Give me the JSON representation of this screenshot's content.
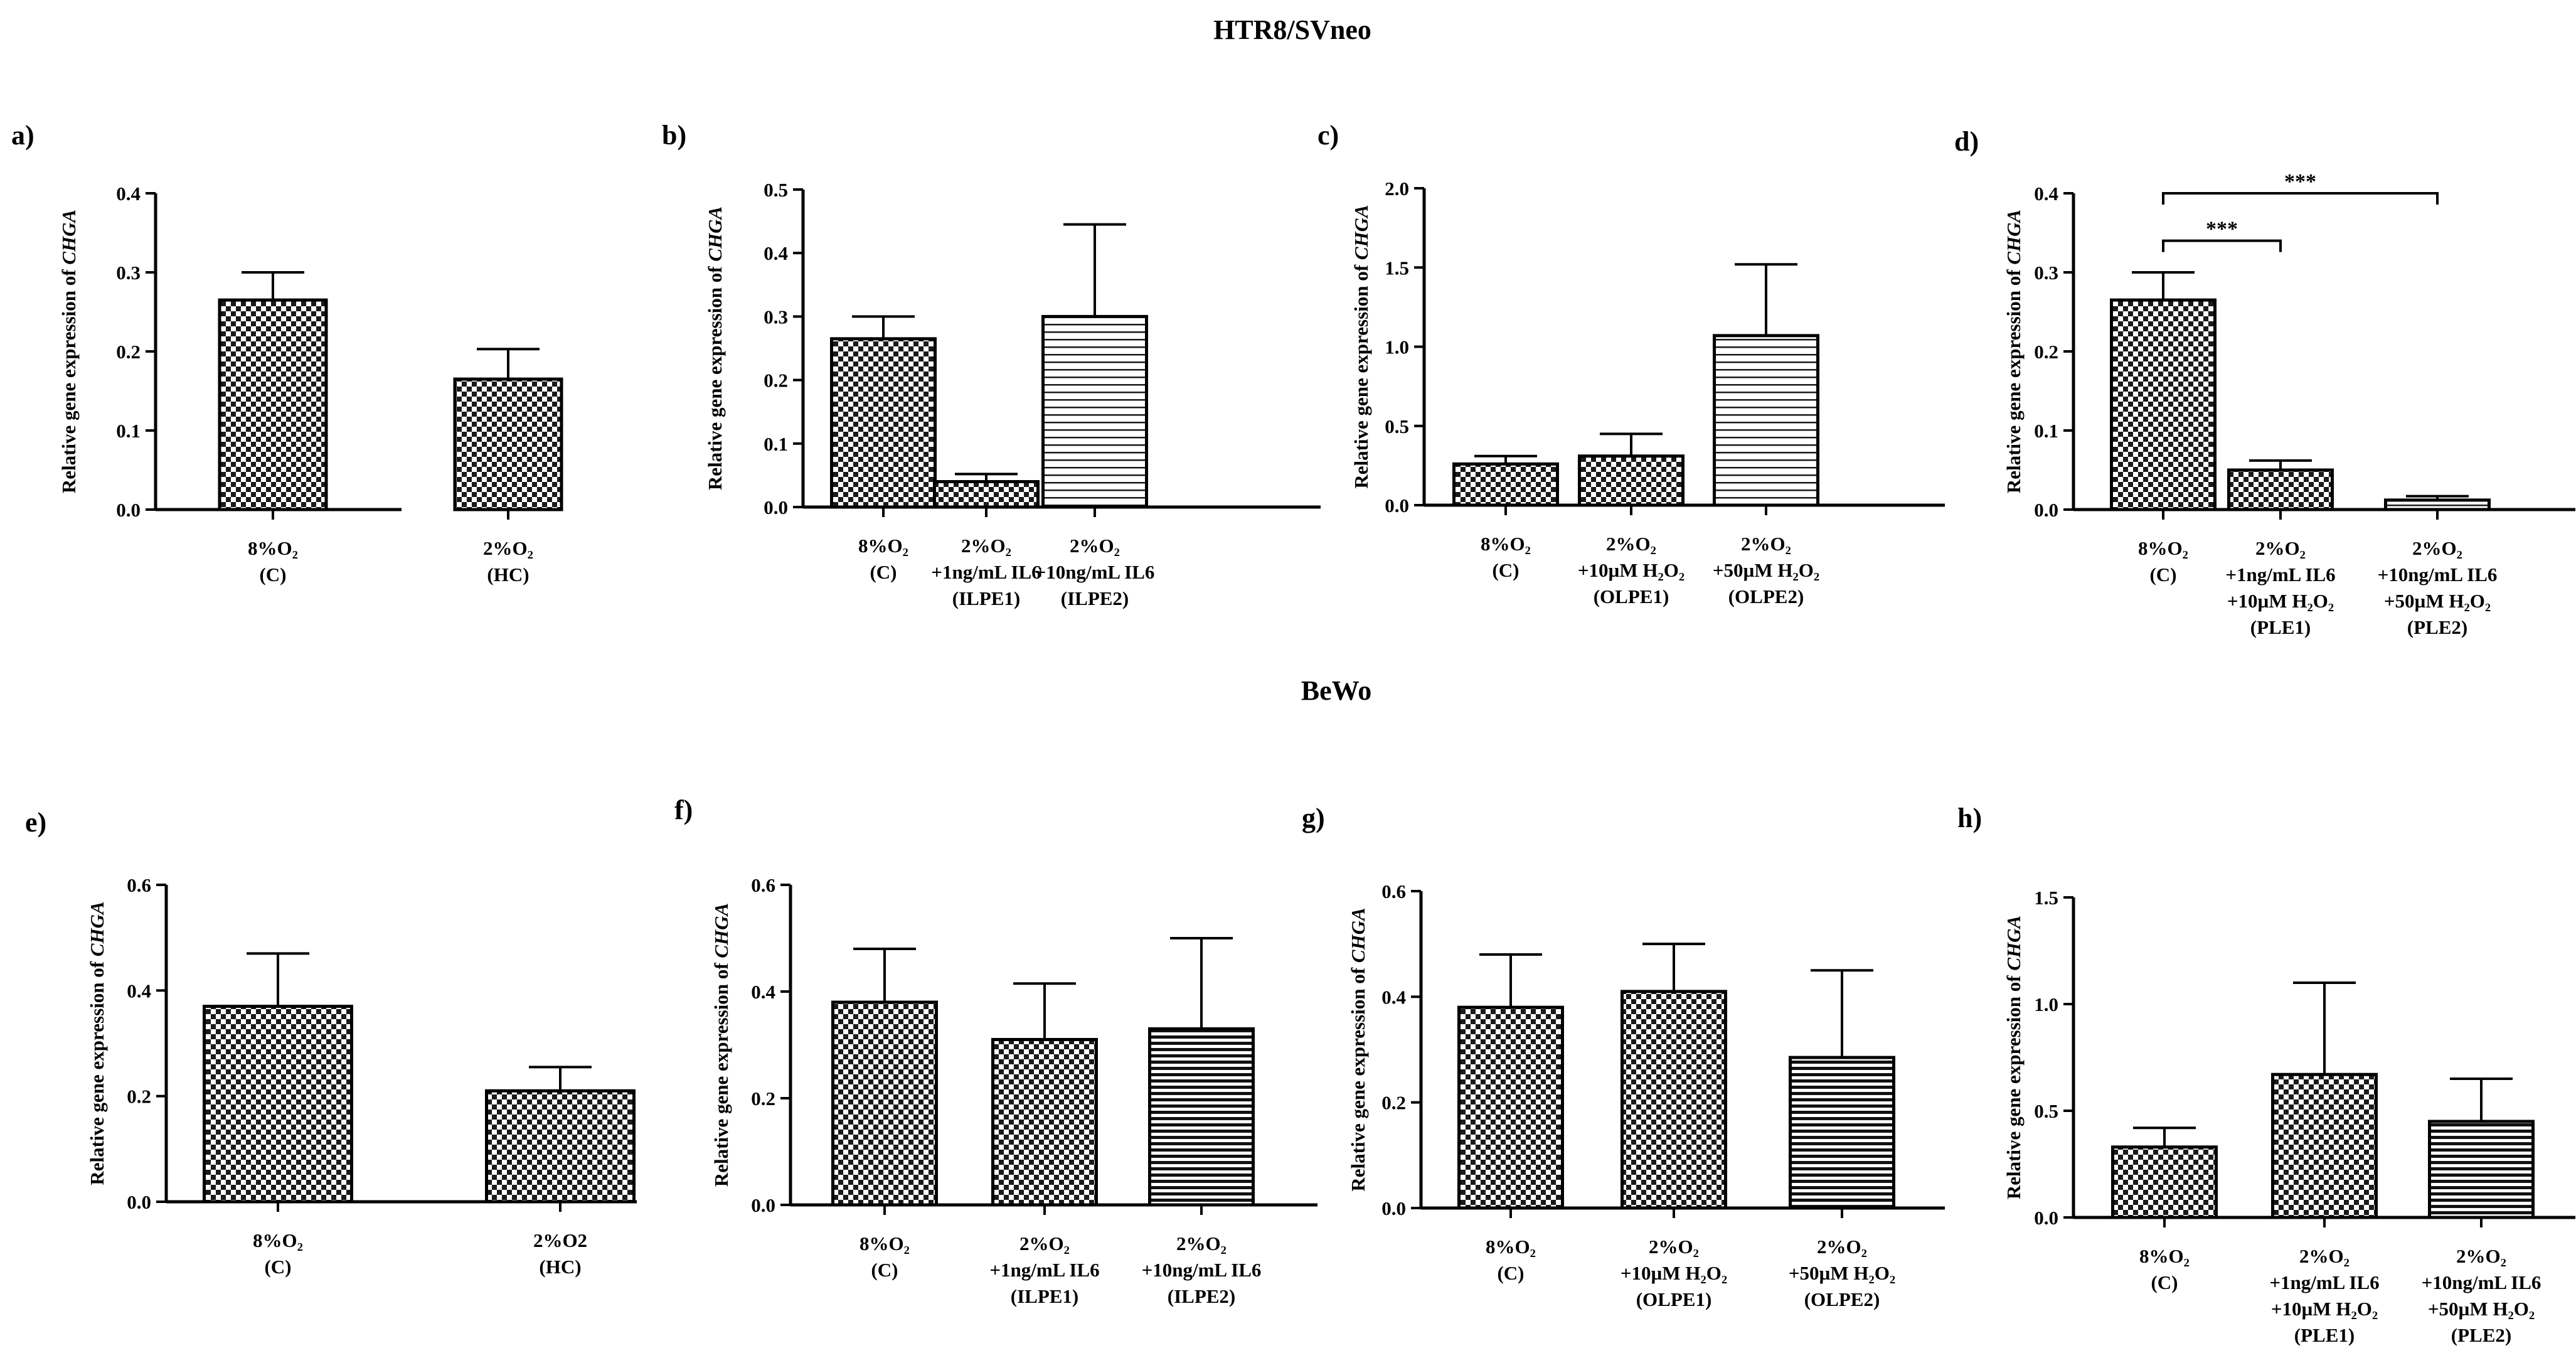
{
  "figure": {
    "section_titles": {
      "top": "HTR8/SVneo",
      "bottom": "BeWo"
    }
  },
  "chart_data": [
    {
      "type": "bar",
      "panel": "a)",
      "ylabel": "Relative gene expression of CHGA",
      "ylim": [
        0,
        0.4
      ],
      "yticks": [
        "0.0",
        "0.1",
        "0.2",
        "0.3",
        "0.4"
      ],
      "categories": [
        [
          "8%O₂",
          "(C)"
        ],
        [
          "2%O₂",
          "(HC)"
        ]
      ],
      "values": [
        0.265,
        0.165
      ],
      "errors": [
        0.035,
        0.038
      ],
      "patterns": [
        "checker",
        "checker"
      ]
    },
    {
      "type": "bar",
      "panel": "b)",
      "ylabel": "Relative gene expression of CHGA",
      "ylim": [
        0,
        0.5
      ],
      "yticks": [
        "0.0",
        "0.1",
        "0.2",
        "0.3",
        "0.4",
        "0.5"
      ],
      "categories": [
        [
          "8%O₂",
          "(C)"
        ],
        [
          "2%O₂",
          "+1ng/mL IL6",
          "(ILPE1)"
        ],
        [
          "2%O₂",
          "+10ng/mL IL6",
          "(ILPE2)"
        ]
      ],
      "values": [
        0.265,
        0.04,
        0.3
      ],
      "errors": [
        0.035,
        0.012,
        0.145
      ],
      "patterns": [
        "checker",
        "checker",
        "hlines"
      ]
    },
    {
      "type": "bar",
      "panel": "c)",
      "ylabel": "Relative gene expression of CHGA",
      "ylim": [
        0,
        2.0
      ],
      "yticks": [
        "0.0",
        "0.5",
        "1.0",
        "1.5",
        "2.0"
      ],
      "categories": [
        [
          "8%O₂",
          "(C)"
        ],
        [
          "2%O₂",
          "+10µM H₂O₂",
          "(OLPE1)"
        ],
        [
          "2%O₂",
          "+50µM H₂O₂",
          "(OLPE2)"
        ]
      ],
      "values": [
        0.26,
        0.31,
        1.07
      ],
      "errors": [
        0.05,
        0.14,
        0.45
      ],
      "patterns": [
        "checker",
        "checker",
        "hlines"
      ]
    },
    {
      "type": "bar",
      "panel": "d)",
      "ylabel": "Relative gene expression of CHGA",
      "ylim": [
        0,
        0.4
      ],
      "yticks": [
        "0.0",
        "0.1",
        "0.2",
        "0.3",
        "0.4"
      ],
      "categories": [
        [
          "8%O₂",
          "(C)"
        ],
        [
          "2%O₂",
          "+1ng/mL IL6",
          "+10µM H₂O₂",
          "(PLE1)"
        ],
        [
          "2%O₂",
          "+10ng/mL IL6",
          "+50µM H₂O₂",
          "(PLE2)"
        ]
      ],
      "values": [
        0.265,
        0.05,
        0.012
      ],
      "errors": [
        0.035,
        0.012,
        0.005
      ],
      "patterns": [
        "checker",
        "checker",
        "hlines"
      ],
      "annotations": [
        {
          "from": 0,
          "to": 1,
          "y": 0.34,
          "label": "***"
        },
        {
          "from": 0,
          "to": 2,
          "y": 0.4,
          "label": "***"
        }
      ]
    },
    {
      "type": "bar",
      "panel": "e)",
      "ylabel": "Relative gene expression of CHGA",
      "ylim": [
        0,
        0.6
      ],
      "yticks": [
        "0.0",
        "0.2",
        "0.4",
        "0.6"
      ],
      "categories": [
        [
          "8%O₂",
          "(C)"
        ],
        [
          "2%O2",
          "(HC)"
        ]
      ],
      "values": [
        0.37,
        0.21
      ],
      "errors": [
        0.1,
        0.045
      ],
      "patterns": [
        "checker",
        "checker"
      ]
    },
    {
      "type": "bar",
      "panel": "f)",
      "ylabel": "Relative gene expression of CHGA",
      "ylim": [
        0,
        0.6
      ],
      "yticks": [
        "0.0",
        "0.2",
        "0.4",
        "0.6"
      ],
      "categories": [
        [
          "8%O₂",
          "(C)"
        ],
        [
          "2%O₂",
          "+1ng/mL IL6",
          "(ILPE1)"
        ],
        [
          "2%O₂",
          "+10ng/mL IL6",
          "(ILPE2)"
        ]
      ],
      "values": [
        0.38,
        0.31,
        0.33
      ],
      "errors": [
        0.1,
        0.105,
        0.17
      ],
      "patterns": [
        "checker",
        "checker",
        "hlines-dense"
      ]
    },
    {
      "type": "bar",
      "panel": "g)",
      "ylabel": "Relative gene expression of CHGA",
      "ylim": [
        0,
        0.6
      ],
      "yticks": [
        "0.0",
        "0.2",
        "0.4",
        "0.6"
      ],
      "categories": [
        [
          "8%O₂",
          "(C)"
        ],
        [
          "2%O₂",
          "+10µM H₂O₂",
          "(OLPE1)"
        ],
        [
          "2%O₂",
          "+50µM H₂O₂",
          "(OLPE2)"
        ]
      ],
      "values": [
        0.38,
        0.41,
        0.285
      ],
      "errors": [
        0.1,
        0.09,
        0.165
      ],
      "patterns": [
        "checker",
        "checker",
        "hlines-dense"
      ]
    },
    {
      "type": "bar",
      "panel": "h)",
      "ylabel": "Relative gene expression of CHGA",
      "ylim": [
        0,
        1.5
      ],
      "yticks": [
        "0.0",
        "0.5",
        "1.0",
        "1.5"
      ],
      "categories": [
        [
          "8%O₂",
          "(C)"
        ],
        [
          "2%O₂",
          "+1ng/mL IL6",
          "+10µM H₂O₂",
          "(PLE1)"
        ],
        [
          "2%O₂",
          "+10ng/mL IL6",
          "+50µM H₂O₂",
          "(PLE2)"
        ]
      ],
      "values": [
        0.33,
        0.67,
        0.45
      ],
      "errors": [
        0.09,
        0.43,
        0.2
      ],
      "patterns": [
        "checker",
        "checker",
        "hlines-dense"
      ]
    }
  ]
}
